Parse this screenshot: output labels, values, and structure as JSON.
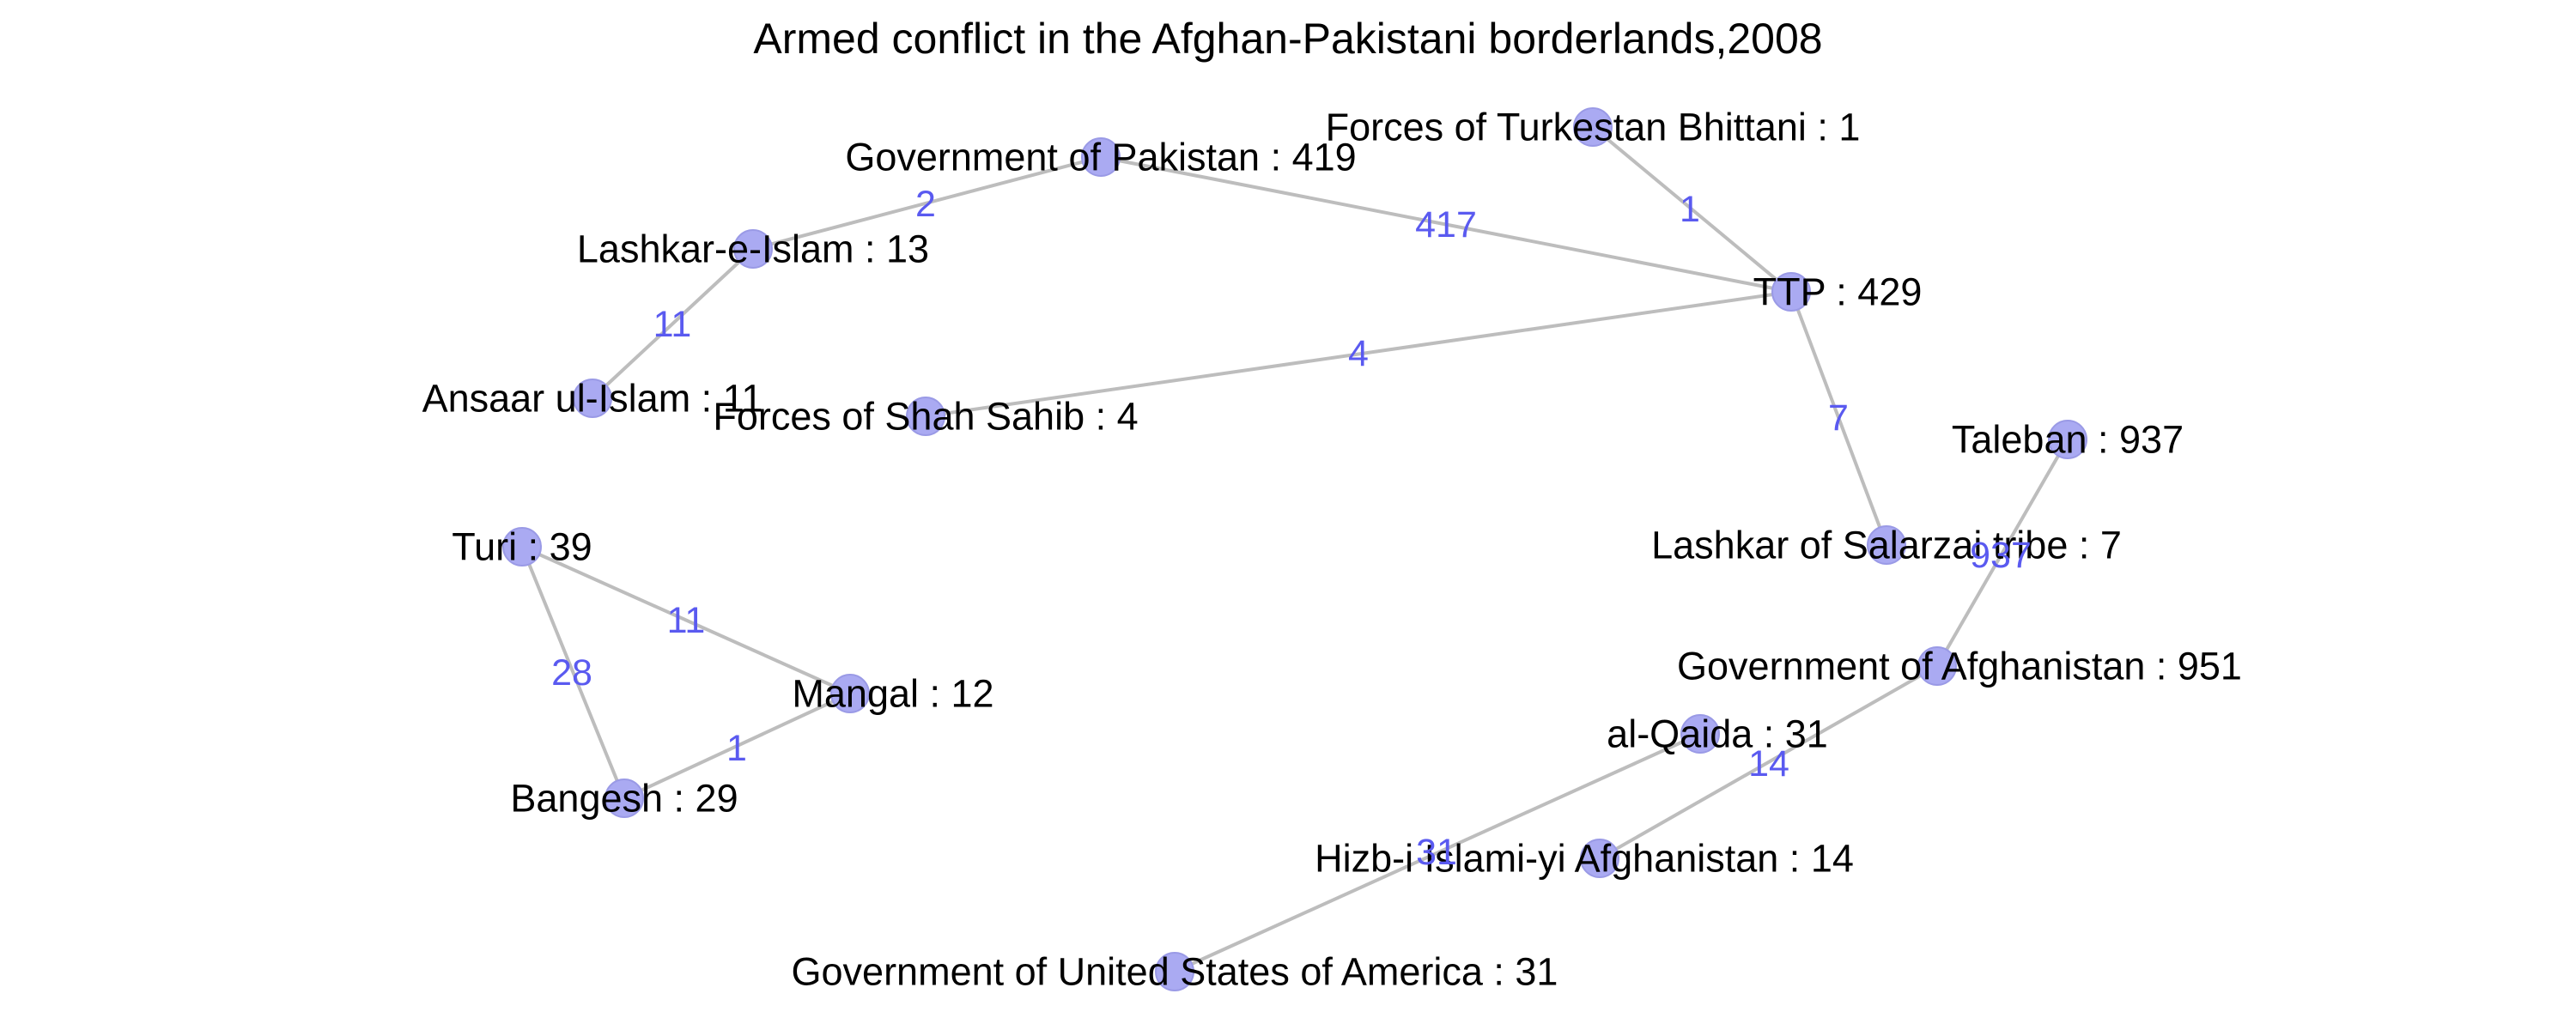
{
  "title": "Armed conflict in the Afghan-Pakistani borderlands,2008",
  "colors": {
    "node_fill": "#aaaaf2",
    "node_stroke": "#9a9ae6",
    "edge": "#bdbdbd",
    "edge_label": "#5a5af0",
    "text": "#000000"
  },
  "nodes": [
    {
      "id": "gop",
      "name": "Government of Pakistan",
      "value": 419,
      "label": "Government of Pakistan : 419"
    },
    {
      "id": "ftb",
      "name": "Forces of Turkestan Bhittani",
      "value": 1,
      "label": "Forces of Turkestan Bhittani : 1"
    },
    {
      "id": "lei",
      "name": "Lashkar-e-Islam",
      "value": 13,
      "label": "Lashkar-e-Islam : 13"
    },
    {
      "id": "ttp",
      "name": "TTP",
      "value": 429,
      "label": "TTP : 429"
    },
    {
      "id": "aui",
      "name": "Ansaar ul-Islam",
      "value": 11,
      "label": "Ansaar ul-Islam : 11"
    },
    {
      "id": "fss",
      "name": "Forces of Shah Sahib",
      "value": 4,
      "label": "Forces of Shah Sahib : 4"
    },
    {
      "id": "tal",
      "name": "Taleban",
      "value": 937,
      "label": "Taleban : 937"
    },
    {
      "id": "turi",
      "name": "Turi",
      "value": 39,
      "label": "Turi : 39"
    },
    {
      "id": "lst",
      "name": "Lashkar of Salarzai tribe",
      "value": 7,
      "label": "Lashkar of Salarzai tribe : 7"
    },
    {
      "id": "mangal",
      "name": "Mangal",
      "value": 12,
      "label": "Mangal : 12"
    },
    {
      "id": "goa",
      "name": "Government of Afghanistan",
      "value": 951,
      "label": "Government of Afghanistan : 951"
    },
    {
      "id": "alq",
      "name": "al-Qaida",
      "value": 31,
      "label": "al-Qaida  : 31"
    },
    {
      "id": "bangesh",
      "name": "Bangesh",
      "value": 29,
      "label": "Bangesh : 29"
    },
    {
      "id": "hia",
      "name": "Hizb-i Islami-yi Afghanistan",
      "value": 14,
      "label": "Hizb-i Islami-yi Afghanistan : 14"
    },
    {
      "id": "gousa",
      "name": "Government of United States of America",
      "value": 31,
      "label": "Government of United States of America : 31"
    }
  ],
  "edges": [
    {
      "from": "lei",
      "to": "gop",
      "weight": 2,
      "label": "2"
    },
    {
      "from": "gop",
      "to": "ttp",
      "weight": 417,
      "label": "417"
    },
    {
      "from": "ftb",
      "to": "ttp",
      "weight": 1,
      "label": "1"
    },
    {
      "from": "aui",
      "to": "lei",
      "weight": 11,
      "label": "11"
    },
    {
      "from": "fss",
      "to": "ttp",
      "weight": 4,
      "label": "4"
    },
    {
      "from": "ttp",
      "to": "lst",
      "weight": 7,
      "label": "7"
    },
    {
      "from": "tal",
      "to": "goa",
      "weight": 937,
      "label": "937"
    },
    {
      "from": "turi",
      "to": "mangal",
      "weight": 11,
      "label": "11"
    },
    {
      "from": "turi",
      "to": "bangesh",
      "weight": 28,
      "label": "28"
    },
    {
      "from": "bangesh",
      "to": "mangal",
      "weight": 1,
      "label": "1"
    },
    {
      "from": "goa",
      "to": "hia",
      "weight": 14,
      "label": "14"
    },
    {
      "from": "alq",
      "to": "gousa",
      "weight": 31,
      "label": "31"
    }
  ]
}
